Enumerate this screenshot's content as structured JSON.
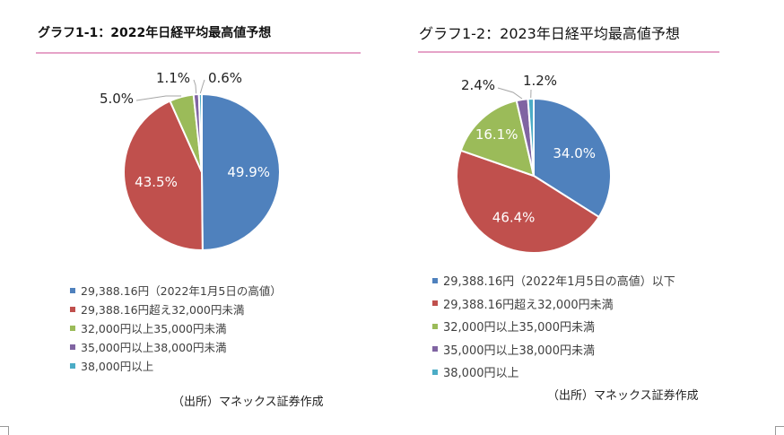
{
  "colors": [
    "#4f81bd",
    "#c0504d",
    "#9bbb59",
    "#8064a2",
    "#4bacc6"
  ],
  "chart_data": [
    {
      "type": "pie",
      "title": "グラフ1-1：2022年日経平均最高値予想",
      "categories": [
        "29,388.16円（2022年1月5日の高値）",
        "29,388.16円超え32,000円未満",
        "32,000円以上35,000円未満",
        "35,000円以上38,000円未満",
        "38,000円以上"
      ],
      "values": [
        49.9,
        43.5,
        5.0,
        1.1,
        0.6
      ],
      "labels": [
        "49.9%",
        "43.5%",
        "5.0%",
        "1.1%",
        "0.6%"
      ],
      "legend": "bottom",
      "source": "（出所）マネックス証券作成"
    },
    {
      "type": "pie",
      "title": "グラフ1-2：2023年日経平均最高値予想",
      "categories": [
        "29,388.16円（2022年1月5日の高値）以下",
        "29,388.16円超え32,000円未満",
        "32,000円以上35,000円未満",
        "35,000円以上38,000円未満",
        "38,000円以上"
      ],
      "values": [
        34.0,
        46.4,
        16.1,
        2.4,
        1.2
      ],
      "labels": [
        "34.0%",
        "46.4%",
        "16.1%",
        "2.4%",
        "1.2%"
      ],
      "legend": "bottom",
      "source": "（出所）マネックス証券作成"
    }
  ]
}
